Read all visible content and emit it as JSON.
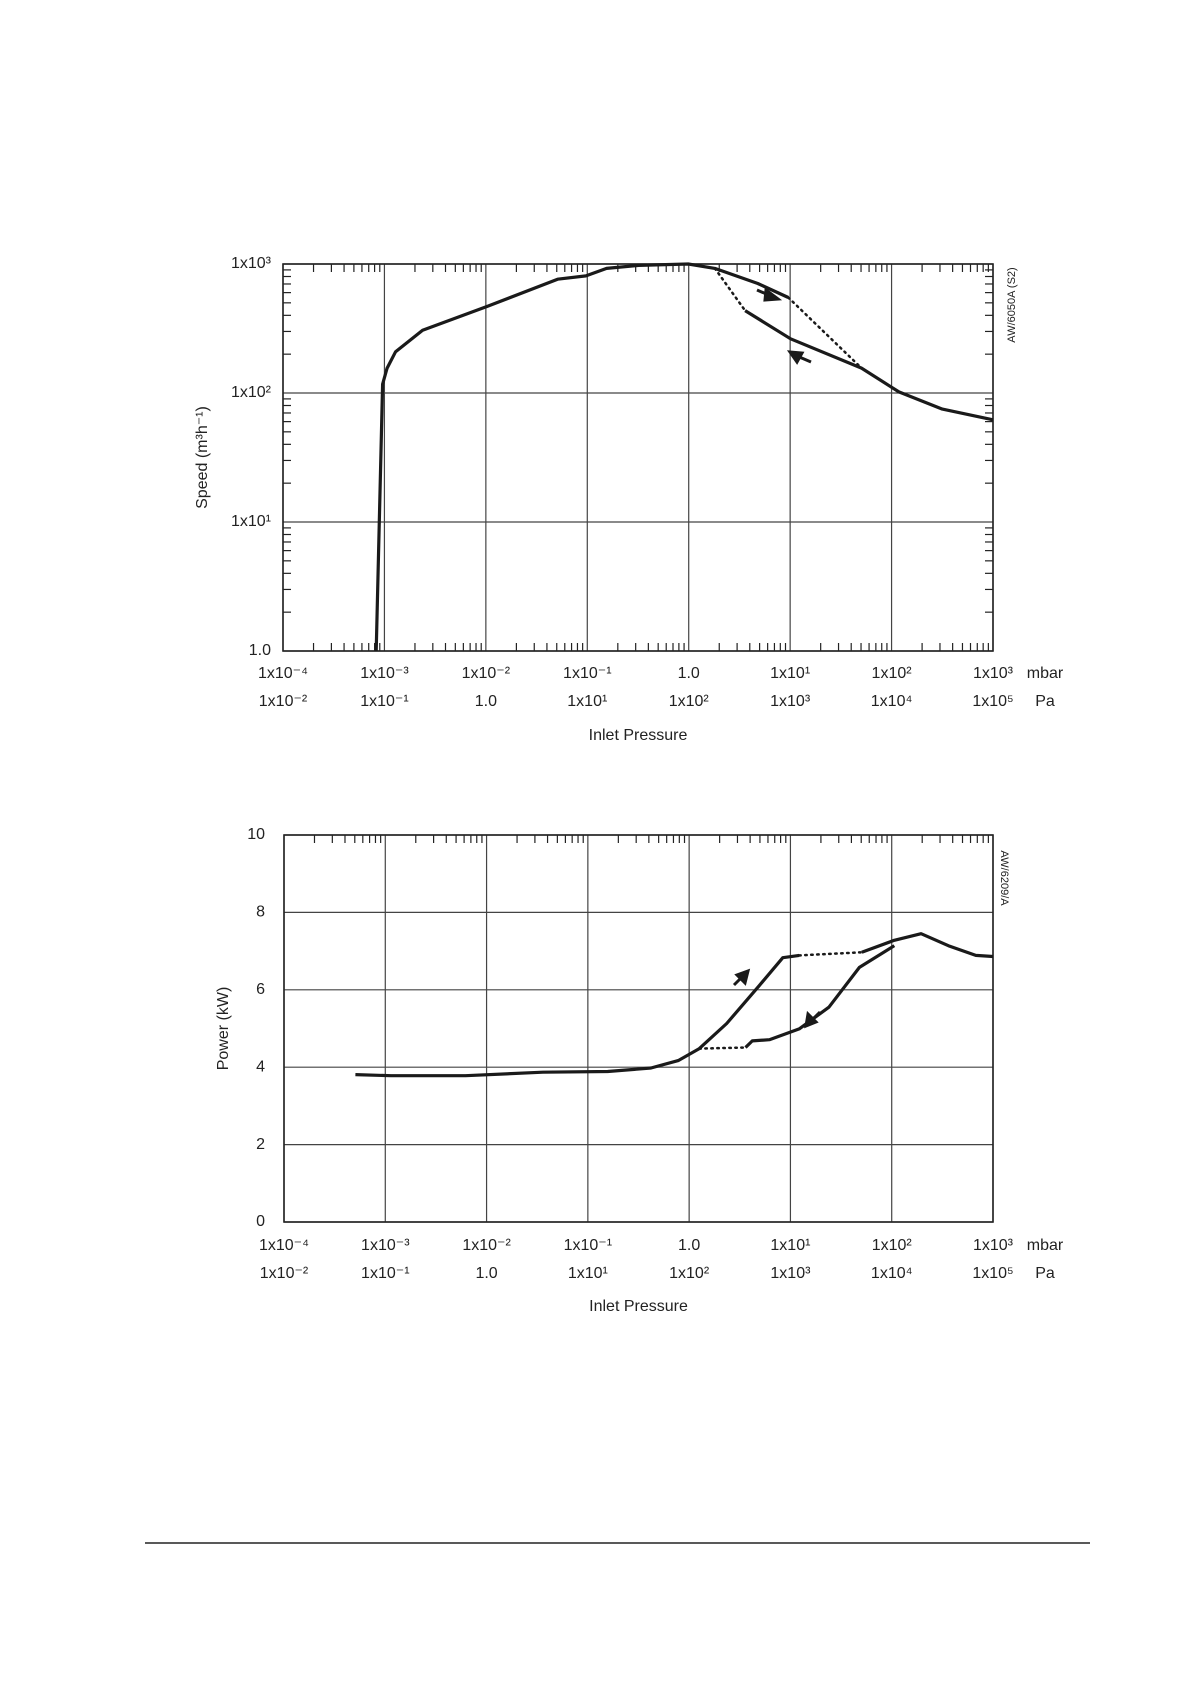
{
  "chart_data": [
    {
      "type": "line",
      "ylabel": "Speed (m³h⁻¹)",
      "xlabel": "Inlet Pressure",
      "code": "AW/6050A (S2)",
      "xscale": "log",
      "yscale": "log",
      "grid": true,
      "color": "#1a1a1a",
      "xlim": [
        0.0001,
        1000
      ],
      "ylim": [
        1,
        1000
      ],
      "xticks": [
        {
          "value": 0.0001,
          "label": "1x10⁻⁴"
        },
        {
          "value": 0.001,
          "label": "1x10⁻³"
        },
        {
          "value": 0.01,
          "label": "1x10⁻²"
        },
        {
          "value": 0.1,
          "label": "1x10⁻¹"
        },
        {
          "value": 1,
          "label": "1.0"
        },
        {
          "value": 10,
          "label": "1x10¹"
        },
        {
          "value": 100,
          "label": "1x10²"
        },
        {
          "value": 1000,
          "label": "1x10³"
        }
      ],
      "xunit": "mbar",
      "x2lim": [
        0.01,
        100000
      ],
      "x2ticks": [
        {
          "value": 0.01,
          "label": "1x10⁻²"
        },
        {
          "value": 0.1,
          "label": "1x10⁻¹"
        },
        {
          "value": 1,
          "label": "1.0"
        },
        {
          "value": 10,
          "label": "1x10¹"
        },
        {
          "value": 100,
          "label": "1x10²"
        },
        {
          "value": 1000,
          "label": "1x10³"
        },
        {
          "value": 10000,
          "label": "1x10⁴"
        },
        {
          "value": 100000,
          "label": "1x10⁵"
        }
      ],
      "x2unit": "Pa",
      "yticks": [
        {
          "value": 1,
          "label": "1.0"
        },
        {
          "value": 10,
          "label": "1x10¹"
        },
        {
          "value": 100,
          "label": "1x10²"
        },
        {
          "value": 1000,
          "label": "1x10³"
        }
      ],
      "series": [
        {
          "style": "solid",
          "x": [
            0.00083,
            0.00096,
            0.00106,
            0.00129,
            0.00238,
            0.0104,
            0.051,
            0.097,
            0.155,
            0.32,
            0.99,
            1.81,
            4.8,
            9.6
          ],
          "values": [
            1,
            117,
            155,
            209,
            307,
            470,
            762,
            809,
            925,
            975,
            1000,
            925,
            706,
            550
          ]
        },
        {
          "style": "dotted",
          "x": [
            9.6,
            50.5
          ],
          "values": [
            550,
            156
          ]
        },
        {
          "style": "dotted",
          "x": [
            1.81,
            3.6
          ],
          "values": [
            925,
            435
          ]
        },
        {
          "style": "solid",
          "x": [
            3.6,
            10.1,
            50.5,
            118,
            316,
            1000
          ],
          "values": [
            435,
            263,
            156,
            102,
            75,
            62
          ]
        }
      ]
    },
    {
      "type": "line",
      "ylabel": "Power (kW)",
      "xlabel": "Inlet Pressure",
      "code": "AW/6209/A",
      "xscale": "log",
      "yscale": "linear",
      "grid": true,
      "color": "#1a1a1a",
      "xlim": [
        0.0001,
        1000
      ],
      "ylim": [
        0,
        10
      ],
      "xticks": [
        {
          "value": 0.0001,
          "label": "1x10⁻⁴"
        },
        {
          "value": 0.001,
          "label": "1x10⁻³"
        },
        {
          "value": 0.01,
          "label": "1x10⁻²"
        },
        {
          "value": 0.1,
          "label": "1x10⁻¹"
        },
        {
          "value": 1,
          "label": "1.0"
        },
        {
          "value": 10,
          "label": "1x10¹"
        },
        {
          "value": 100,
          "label": "1x10²"
        },
        {
          "value": 1000,
          "label": "1x10³"
        }
      ],
      "xunit": "mbar",
      "x2lim": [
        0.01,
        100000
      ],
      "x2ticks": [
        {
          "value": 0.01,
          "label": "1x10⁻²"
        },
        {
          "value": 0.1,
          "label": "1x10⁻¹"
        },
        {
          "value": 1,
          "label": "1.0"
        },
        {
          "value": 10,
          "label": "1x10¹"
        },
        {
          "value": 100,
          "label": "1x10²"
        },
        {
          "value": 1000,
          "label": "1x10³"
        },
        {
          "value": 10000,
          "label": "1x10⁴"
        },
        {
          "value": 100000,
          "label": "1x10⁵"
        }
      ],
      "x2unit": "Pa",
      "yticks": [
        0,
        2,
        4,
        6,
        8,
        10
      ],
      "series": [
        {
          "style": "solid",
          "x": [
            0.000507,
            0.00114,
            0.0062,
            0.036,
            0.157,
            0.42,
            0.78,
            1.26,
            2.35,
            4.9,
            8.4,
            12.2
          ],
          "values": [
            3.81,
            3.78,
            3.78,
            3.87,
            3.89,
            3.98,
            4.17,
            4.48,
            5.13,
            6.1,
            6.83,
            6.89
          ]
        },
        {
          "style": "dotted",
          "x": [
            12.2,
            50.7
          ],
          "values": [
            6.89,
            6.97
          ]
        },
        {
          "style": "solid",
          "x": [
            50.7,
            106,
            195,
            363,
            676,
            1000
          ],
          "values": [
            6.97,
            7.28,
            7.45,
            7.14,
            6.89,
            6.86
          ]
        },
        {
          "style": "dotted",
          "x": [
            1.26,
            3.6
          ],
          "values": [
            4.48,
            4.51
          ]
        },
        {
          "style": "solid",
          "x": [
            3.6,
            4.2,
            6.2,
            12.2,
            24,
            48,
            106
          ],
          "values": [
            4.51,
            4.68,
            4.71,
            4.99,
            5.55,
            6.58,
            7.14
          ]
        }
      ]
    }
  ]
}
